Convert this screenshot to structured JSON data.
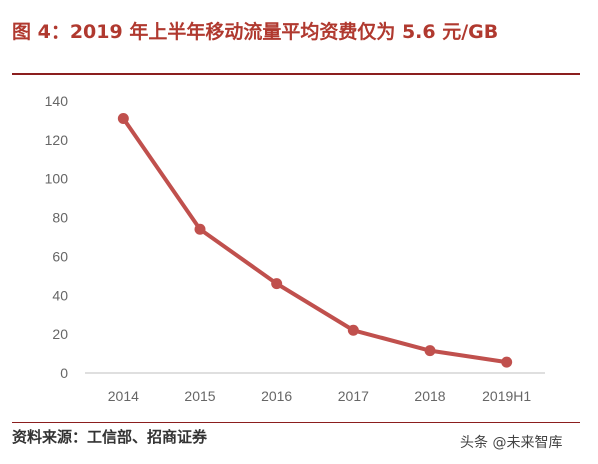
{
  "figure": {
    "title": "图 4：2019 年上半年移动流量平均资费仅为 5.6 元/GB",
    "source": "资料来源：工信部、招商证券",
    "watermark": "头条 @未来智库"
  },
  "colors": {
    "title": "#b0392f",
    "rule": "#8b1e1e",
    "line": "#c0504d",
    "axis": "#bfbfbf"
  },
  "chart_data": {
    "type": "line",
    "title": "",
    "xlabel": "",
    "ylabel": "",
    "categories": [
      "2014",
      "2015",
      "2016",
      "2017",
      "2018",
      "2019H1"
    ],
    "series": [
      {
        "values": [
          131,
          74,
          46,
          22,
          11.5,
          5.6
        ]
      }
    ],
    "ylim": [
      0,
      140
    ],
    "yticks": [
      0,
      20,
      40,
      60,
      80,
      100,
      120,
      140
    ],
    "grid": false,
    "legend": "none"
  }
}
